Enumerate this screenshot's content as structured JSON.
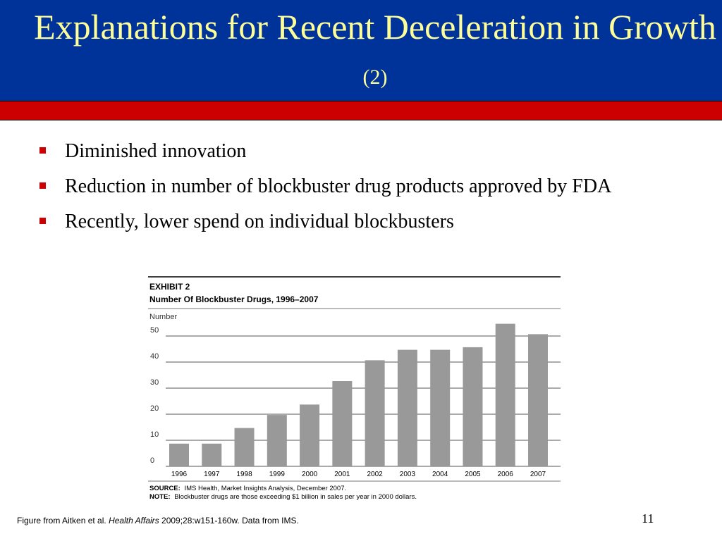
{
  "slide": {
    "title_main": "Explanations for Recent Deceleration in Growth",
    "title_sub": "(2)",
    "bullets": [
      "Diminished innovation",
      "Reduction in number of blockbuster drug products approved by FDA",
      "Recently, lower spend on individual blockbusters"
    ],
    "footnote": {
      "prefix": "Figure from Aitken et al.",
      "journal": "Health Affairs",
      "suffix": "2009;28:w151-160w.  Data from IMS."
    },
    "slide_number": "11"
  },
  "colors": {
    "title_bg": "#003399",
    "title_text": "#ffff99",
    "accent_bar": "#cc0000",
    "bar_fill": "#999999"
  },
  "chart_data": {
    "type": "bar",
    "exhibit_label": "EXHIBIT 2",
    "title": "Number Of Blockbuster Drugs, 1996–2007",
    "ylabel": "Number",
    "xlabel": "",
    "ylim": [
      0,
      50
    ],
    "yticks": [
      0,
      10,
      20,
      30,
      40,
      50
    ],
    "grid": true,
    "categories": [
      "1996",
      "1997",
      "1998",
      "1999",
      "2000",
      "2001",
      "2002",
      "2003",
      "2004",
      "2005",
      "2006",
      "2007"
    ],
    "values": [
      6,
      6,
      12,
      17,
      21,
      30,
      38,
      42,
      42,
      43,
      52,
      48
    ],
    "source_label": "SOURCE:",
    "source_text": "IMS Health, Market Insights Analysis, December 2007.",
    "note_label": "NOTE:",
    "note_text": "Blockbuster drugs are those exceeding $1 billion in sales per year in 2000 dollars."
  }
}
